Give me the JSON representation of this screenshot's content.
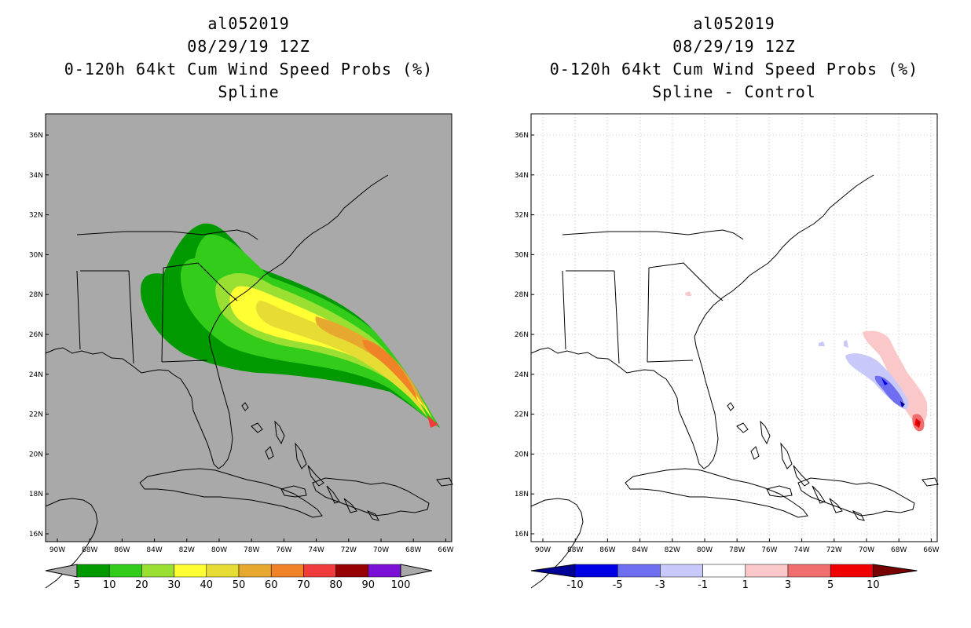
{
  "left": {
    "title_lines": [
      "al052019",
      "08/29/19 12Z",
      "0-120h 64kt Cum Wind Speed Probs (%)",
      "Spline"
    ],
    "background_color": "#a9a9a9",
    "colorbar": {
      "labels": [
        "5",
        "10",
        "20",
        "30",
        "40",
        "50",
        "60",
        "70",
        "80",
        "90",
        "100"
      ],
      "colors": [
        "#009900",
        "#33cc1a",
        "#99e033",
        "#ffff33",
        "#e6dc33",
        "#e6a82e",
        "#f08228",
        "#f03c3c",
        "#960000",
        "#7a0fd6"
      ]
    }
  },
  "right": {
    "title_lines": [
      "al052019",
      "08/29/19 12Z",
      "0-120h 64kt Cum Wind Speed Probs (%)",
      "Spline - Control"
    ],
    "background_color": "#ffffff",
    "colorbar": {
      "labels": [
        "-10",
        "-5",
        "-3",
        "-1",
        "1",
        "3",
        "5",
        "10"
      ],
      "colors": [
        "#0000e6",
        "#6e6ef0",
        "#c8c8fa",
        "#ffffff",
        "#fac8c8",
        "#f06e6e",
        "#f00000"
      ],
      "end_colors": [
        "#000096",
        "#780000"
      ]
    }
  },
  "axes": {
    "lat_labels": [
      "36N",
      "34N",
      "32N",
      "30N",
      "28N",
      "26N",
      "24N",
      "22N",
      "20N",
      "18N",
      "16N"
    ],
    "lon_labels": [
      "90W",
      "88W",
      "86W",
      "84W",
      "82W",
      "80W",
      "78W",
      "76W",
      "74W",
      "72W",
      "70W",
      "68W",
      "66W"
    ]
  }
}
